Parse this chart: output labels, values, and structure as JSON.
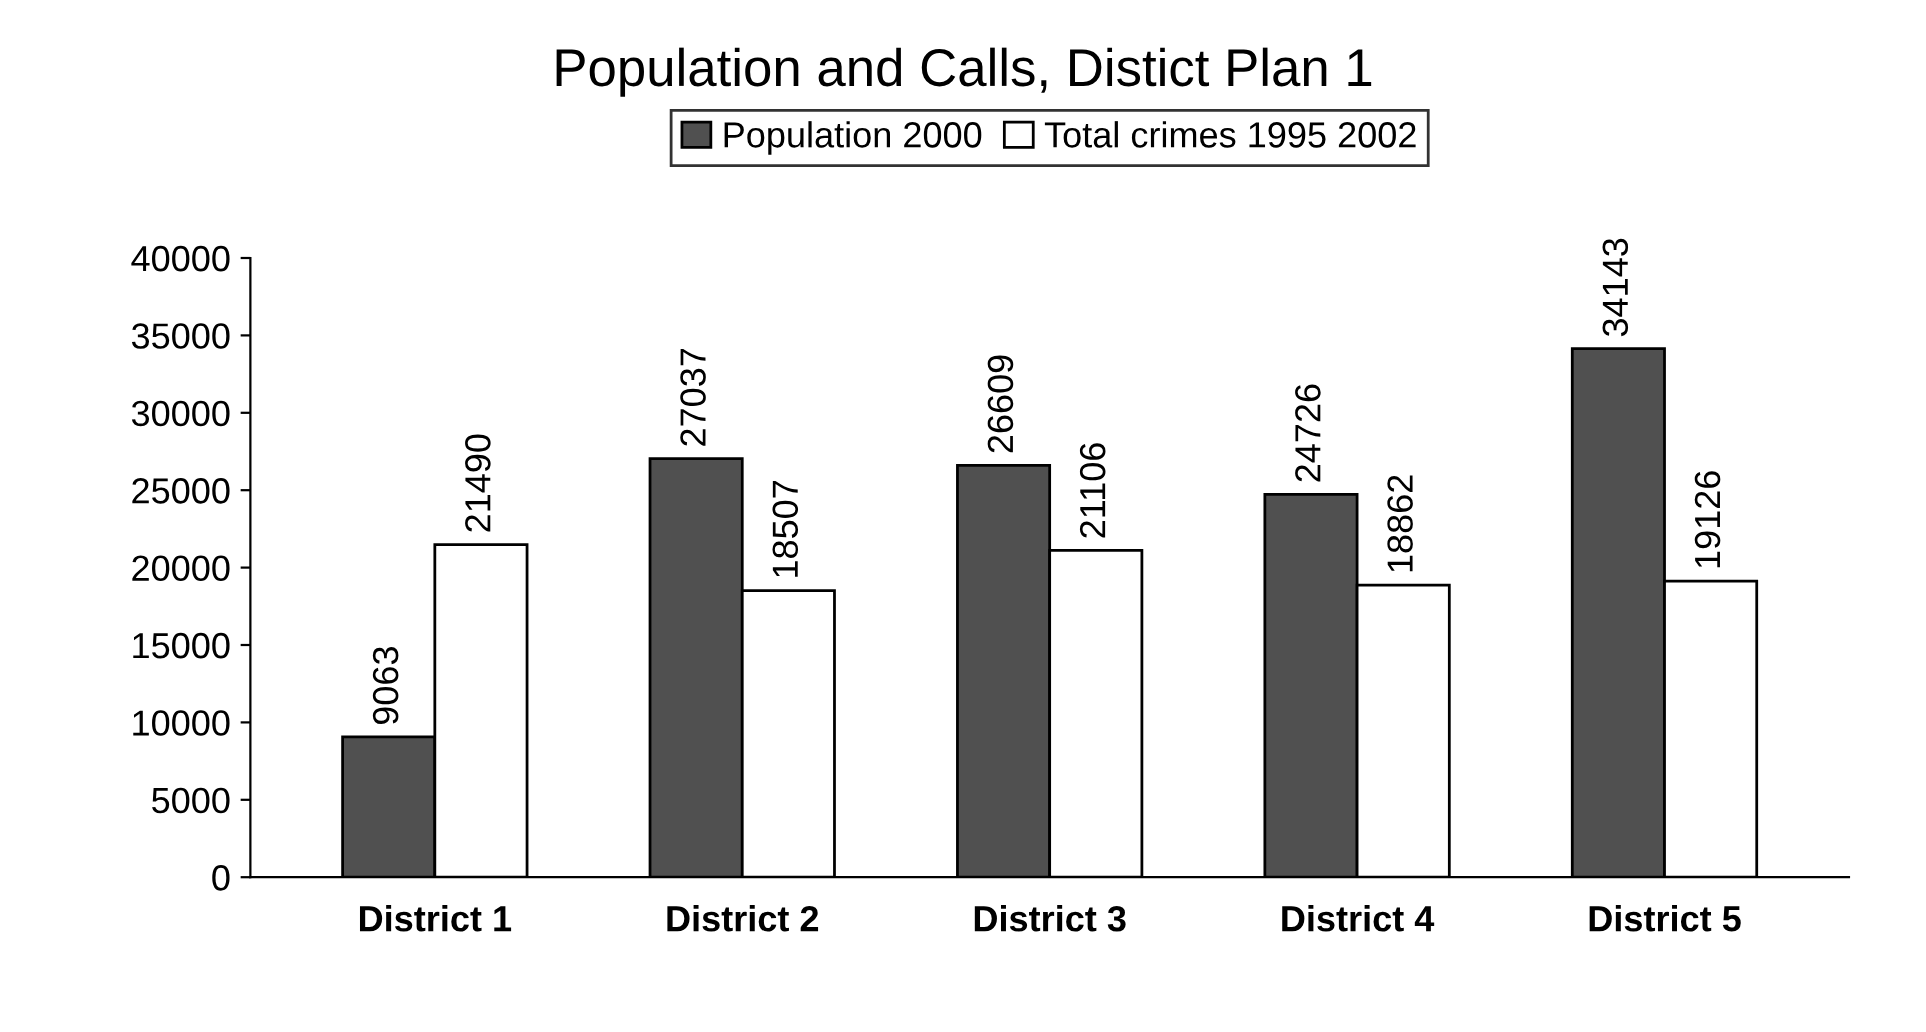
{
  "chart_data": {
    "type": "bar",
    "title": "Population and Calls, Distict Plan 1",
    "categories": [
      "District 1",
      "District 2",
      "District 3",
      "District 4",
      "District 5"
    ],
    "series": [
      {
        "name": "Population 2000",
        "color": "#505050",
        "values": [
          9063,
          27037,
          26609,
          24726,
          34143
        ]
      },
      {
        "name": "Total crimes 1995 2002",
        "color": "#ffffff",
        "values": [
          21490,
          18507,
          21106,
          18862,
          19126
        ]
      }
    ],
    "ylim": [
      0,
      40000
    ],
    "yticks": [
      0,
      5000,
      10000,
      15000,
      20000,
      25000,
      30000,
      35000,
      40000
    ],
    "data_labels": true,
    "legend": "top",
    "grid": false
  }
}
